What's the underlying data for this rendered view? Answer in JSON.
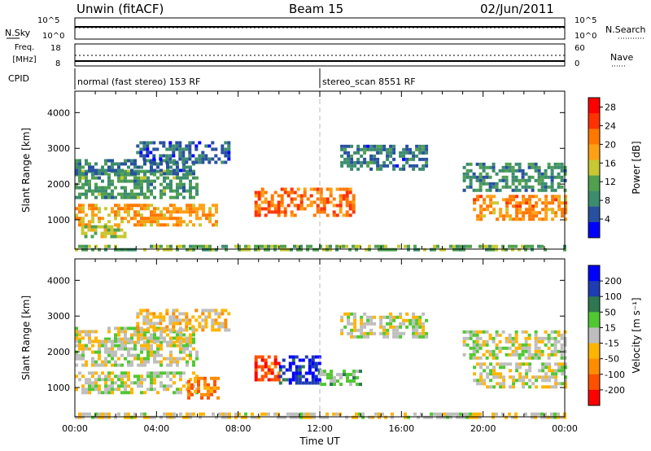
{
  "header": {
    "left": "Unwin (fitACF)",
    "center": "Beam 15",
    "right": "02/Jun/2011"
  },
  "top_panels": {
    "nsky_label": "N.Sky",
    "nsearch_label": "N.Search",
    "freq_label_1": "Freq.",
    "freq_label_2": "[MHz]",
    "nave_label": "Nave",
    "cpid_label": "CPID",
    "nsky_ticks": [
      "10^5",
      "10^0"
    ],
    "nsearch_ticks": [
      "10^5",
      "10^0"
    ],
    "freq_ticks": [
      "18",
      "8"
    ],
    "nave_ticks": [
      "60",
      "0"
    ],
    "cpid_modes": [
      {
        "label": "normal (fast stereo) 153 RF",
        "start_hour": 0,
        "end_hour": 12
      },
      {
        "label": "stereo_scan 8551 RF",
        "start_hour": 12,
        "end_hour": 24
      }
    ]
  },
  "colors": {
    "power_scale": [
      "#0000ff",
      "#2850a0",
      "#3c8c6e",
      "#50a050",
      "#c8c832",
      "#ffa014",
      "#ff7800",
      "#ff3200",
      "#ff0000"
    ],
    "velocity_scale": [
      "#0000ff",
      "#1e3cb4",
      "#2d7850",
      "#50c832",
      "#bebebe",
      "#ffb400",
      "#ff8c00",
      "#ff5000",
      "#ff0000"
    ]
  },
  "chart_data": [
    {
      "type": "heatmap",
      "ylabel": "Slant Range [km]",
      "xlabel": "",
      "x_ticks": [
        "00:00",
        "04:00",
        "08:00",
        "12:00",
        "16:00",
        "20:00",
        "00:00"
      ],
      "x_range_hours": [
        0,
        24
      ],
      "y_ticks": [
        1000,
        2000,
        3000,
        4000
      ],
      "y_range_km": [
        180,
        4600
      ],
      "colorbar": {
        "label": "Power [dB]",
        "ticks": [
          4,
          8,
          12,
          16,
          20,
          24,
          28
        ],
        "range": [
          0,
          30
        ]
      },
      "echo_regions": [
        {
          "name": "main-band-early",
          "t0": 0,
          "t1": 7.0,
          "r0": 900,
          "r1": 1450,
          "value": 19
        },
        {
          "name": "mid-band-early",
          "t0": 0,
          "t1": 6.0,
          "r0": 1600,
          "r1": 2400,
          "value": 10
        },
        {
          "name": "far-band-early",
          "t0": 0,
          "t1": 5.8,
          "r0": 2300,
          "r1": 2700,
          "value": 7
        },
        {
          "name": "upper-patch-early",
          "t0": 3.0,
          "t1": 7.5,
          "r0": 2600,
          "r1": 3200,
          "value": 6
        },
        {
          "name": "low-range-early",
          "t0": 0.3,
          "t1": 2.5,
          "r0": 500,
          "r1": 850,
          "value": 14
        },
        {
          "name": "midday-band",
          "t0": 8.8,
          "t1": 13.7,
          "r0": 1100,
          "r1": 1900,
          "value": 22
        },
        {
          "name": "afternoon-upper",
          "t0": 13.0,
          "t1": 17.3,
          "r0": 2400,
          "r1": 3100,
          "value": 7
        },
        {
          "name": "evening-main",
          "t0": 19.5,
          "t1": 24,
          "r0": 1000,
          "r1": 1700,
          "value": 20
        },
        {
          "name": "evening-mid",
          "t0": 19.0,
          "t1": 24,
          "r0": 1800,
          "r1": 2600,
          "value": 9
        },
        {
          "name": "near-range-ground",
          "t0": 0,
          "t1": 24,
          "r0": 200,
          "r1": 300,
          "value": 12
        }
      ]
    },
    {
      "type": "heatmap",
      "ylabel": "Slant Range [km]",
      "xlabel": "Time UT",
      "x_ticks": [
        "00:00",
        "04:00",
        "08:00",
        "12:00",
        "16:00",
        "20:00",
        "00:00"
      ],
      "x_range_hours": [
        0,
        24
      ],
      "y_ticks": [
        1000,
        2000,
        3000,
        4000
      ],
      "y_range_km": [
        180,
        4600
      ],
      "colorbar": {
        "label": "Velocity [m s⁻¹]",
        "ticks": [
          200,
          100,
          50,
          15,
          -15,
          -50,
          -100,
          -200
        ],
        "range": [
          -250,
          250
        ]
      },
      "echo_regions": [
        {
          "name": "main-band-early",
          "t0": 0,
          "t1": 6.0,
          "r0": 900,
          "r1": 1450,
          "value": 0
        },
        {
          "name": "mid-band-early",
          "t0": 0,
          "t1": 6.0,
          "r0": 1600,
          "r1": 2400,
          "value": -5
        },
        {
          "name": "far-band-early",
          "t0": 0,
          "t1": 5.8,
          "r0": 2300,
          "r1": 2700,
          "value": -8
        },
        {
          "name": "upper-patch-early",
          "t0": 3.0,
          "t1": 7.5,
          "r0": 2600,
          "r1": 3200,
          "value": -40
        },
        {
          "name": "early-morning-negative",
          "t0": 5.5,
          "t1": 7.0,
          "r0": 700,
          "r1": 1300,
          "value": -120
        },
        {
          "name": "midday-red",
          "t0": 8.8,
          "t1": 10.0,
          "r0": 1200,
          "r1": 1900,
          "value": -180
        },
        {
          "name": "midday-blue",
          "t0": 10.0,
          "t1": 12.0,
          "r0": 1100,
          "r1": 1900,
          "value": 180
        },
        {
          "name": "midday-green",
          "t0": 12.0,
          "t1": 14.0,
          "r0": 1100,
          "r1": 1500,
          "value": 40
        },
        {
          "name": "afternoon-upper",
          "t0": 13.0,
          "t1": 17.3,
          "r0": 2400,
          "r1": 3100,
          "value": 0
        },
        {
          "name": "evening-main",
          "t0": 19.5,
          "t1": 24,
          "r0": 1000,
          "r1": 1700,
          "value": 0
        },
        {
          "name": "evening-mid",
          "t0": 19.0,
          "t1": 24,
          "r0": 1800,
          "r1": 2600,
          "value": 5
        },
        {
          "name": "near-range-ground",
          "t0": 0,
          "t1": 24,
          "r0": 200,
          "r1": 300,
          "value": -20
        }
      ]
    }
  ]
}
